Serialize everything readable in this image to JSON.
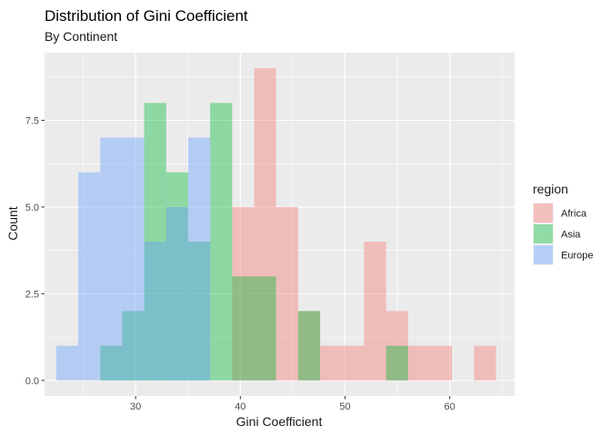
{
  "chart_data": {
    "type": "histogram",
    "title": "Distribution of Gini Coefficient",
    "subtitle": "By Continent",
    "xlabel": "Gini Coefficient",
    "ylabel": "Count",
    "xlim": [
      21.3,
      66.2
    ],
    "ylim": [
      -0.45,
      9.45
    ],
    "x_ticks": [
      30,
      40,
      50,
      60
    ],
    "x_tick_labels": [
      "30",
      "40",
      "50",
      "60"
    ],
    "y_ticks": [
      0,
      2.5,
      5,
      7.5
    ],
    "y_tick_labels": [
      "0.0",
      "2.5",
      "5.0",
      "7.5"
    ],
    "bin_width": 2.1,
    "bin_starts": [
      22.42,
      24.52,
      26.62,
      28.72,
      30.82,
      32.92,
      35.02,
      37.12,
      39.22,
      41.32,
      43.42,
      45.52,
      47.62,
      49.72,
      51.82,
      53.92,
      56.02,
      58.12,
      60.22,
      62.32
    ],
    "grid": true,
    "legend_position": "right",
    "legend_title": "region",
    "series": [
      {
        "name": "Africa",
        "color": "#F8766D",
        "counts": [
          0,
          0,
          0,
          0,
          0,
          0,
          0,
          0,
          5,
          9,
          5,
          2,
          1,
          1,
          4,
          2,
          1,
          1,
          0,
          1
        ]
      },
      {
        "name": "Asia",
        "color": "#00BA38",
        "counts": [
          0,
          0,
          1,
          2,
          8,
          6,
          4,
          8,
          3,
          3,
          0,
          2,
          0,
          0,
          0,
          1,
          0,
          0,
          0,
          0
        ]
      },
      {
        "name": "Europe",
        "color": "#619CFF",
        "counts": [
          1,
          6,
          7,
          7,
          4,
          5,
          7,
          0,
          0,
          0,
          0,
          0,
          0,
          0,
          0,
          0,
          0,
          0,
          0,
          0
        ]
      }
    ]
  }
}
